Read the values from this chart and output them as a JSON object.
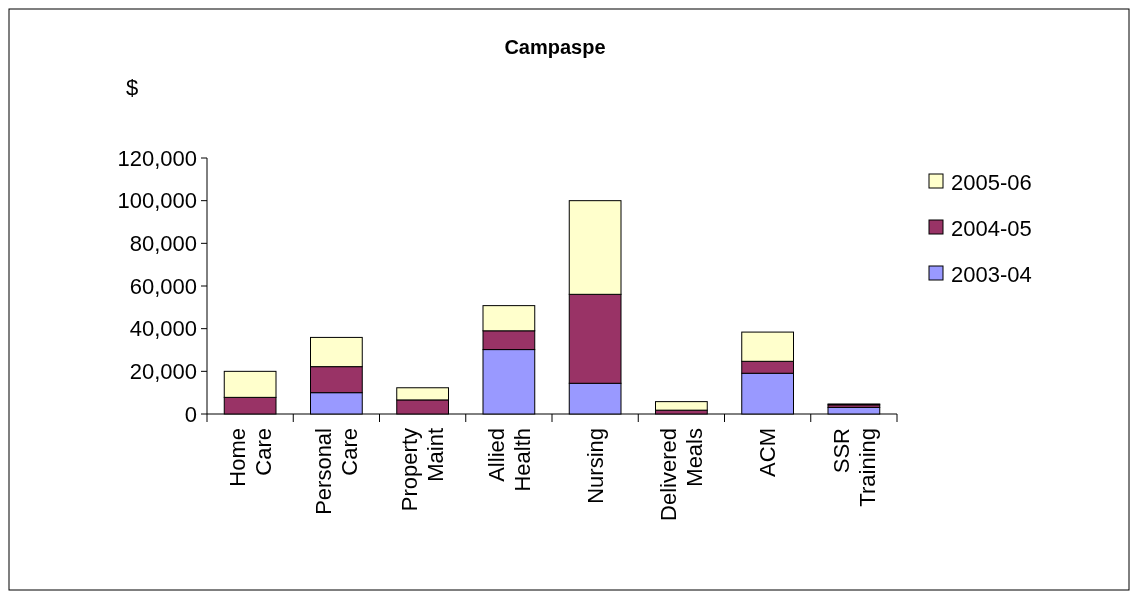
{
  "chart_data": {
    "type": "bar",
    "title": "Campaspe",
    "ylabel": "$",
    "stacked": true,
    "categories": [
      "Home Care",
      "Personal Care",
      "Property Maint",
      "Allied Health",
      "Nursing",
      "Delivered Meals",
      "ACM",
      "SSR Training"
    ],
    "series": [
      {
        "name": "2003-04",
        "color": "#9999ff",
        "values": [
          0,
          10000,
          0,
          30200,
          14400,
          0,
          19100,
          3100
        ]
      },
      {
        "name": "2004-05",
        "color": "#993366",
        "values": [
          7800,
          12200,
          6600,
          8800,
          41700,
          1800,
          5600,
          1200
        ]
      },
      {
        "name": "2005-06",
        "color": "#ffffcc",
        "values": [
          12200,
          13700,
          5700,
          11800,
          43900,
          4000,
          13700,
          400
        ]
      }
    ],
    "ylim": [
      0,
      120000
    ],
    "yticks": [
      {
        "value": 0,
        "label": "0"
      },
      {
        "value": 20000,
        "label": "20,000"
      },
      {
        "value": 40000,
        "label": "40,000"
      },
      {
        "value": 60000,
        "label": "60,000"
      },
      {
        "value": 80000,
        "label": "80,000"
      },
      {
        "value": 100000,
        "label": "100,000"
      },
      {
        "value": 120000,
        "label": "120,000"
      }
    ],
    "grid": false,
    "legend": "right"
  }
}
